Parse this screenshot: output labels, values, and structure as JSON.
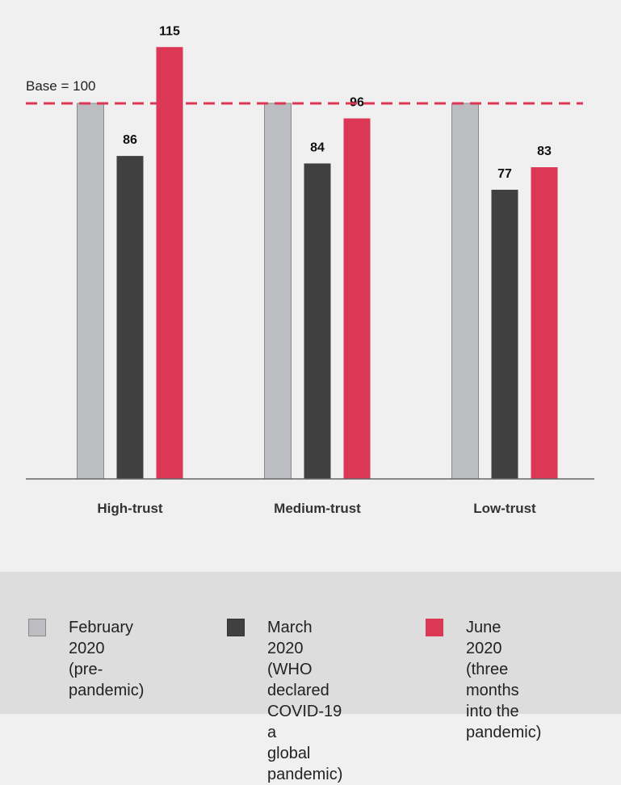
{
  "chart_data": {
    "type": "bar",
    "categories": [
      "High-trust",
      "Medium-trust",
      "Low-trust"
    ],
    "series": [
      {
        "name": "February 2020 (pre-pandemic)",
        "values": [
          100,
          100,
          100
        ],
        "color": "#bcbdc0",
        "show_labels": false
      },
      {
        "name": "March 2020 (WHO declared COVID-19 a global pandemic)",
        "values": [
          86,
          84,
          77
        ],
        "color": "#404040",
        "show_labels": true
      },
      {
        "name": "June 2020 (three months into the pandemic)",
        "values": [
          115,
          96,
          83
        ],
        "color": "#dc3754",
        "show_labels": true
      }
    ],
    "reference_line": {
      "value": 100,
      "label": "Base = 100",
      "color": "#dc3754",
      "style": "dashed"
    },
    "ylim": [
      0,
      115
    ],
    "grid": false,
    "legend_position": "bottom"
  },
  "legend": [
    {
      "text": "February 2020\n(pre-pandemic)",
      "color": "#bcbdc0",
      "border": "#8a8a8a"
    },
    {
      "text": "March 2020\n(WHO declared\nCOVID-19 a\nglobal pandemic)",
      "color": "#404040",
      "border": "#333333"
    },
    {
      "text": "June 2020 (three\nmonths into the\npandemic)",
      "color": "#dc3754",
      "border": "#dc3754"
    }
  ]
}
